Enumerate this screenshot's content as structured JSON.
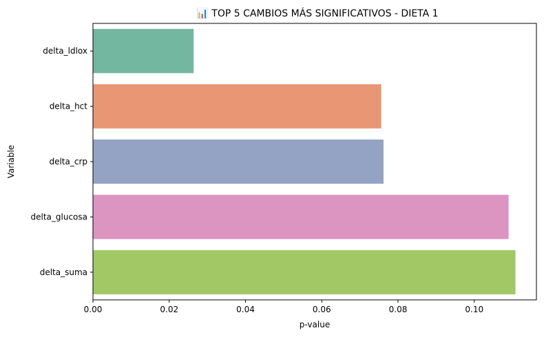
{
  "chart_data": {
    "type": "bar",
    "orientation": "horizontal",
    "title": "📊 TOP 5 CAMBIOS MÁS SIGNIFICATIVOS - DIETA 1",
    "xlabel": "p-value",
    "ylabel": "Variable",
    "categories": [
      "delta_ldlox",
      "delta_hct",
      "delta_crp",
      "delta_glucosa",
      "delta_suma"
    ],
    "values": [
      0.0264,
      0.0756,
      0.0762,
      0.109,
      0.1108
    ],
    "colors": [
      "#73b7a1",
      "#e99674",
      "#94a3c3",
      "#dc94c1",
      "#a2c866"
    ],
    "xlim": [
      0,
      0.1163
    ],
    "xticks": [
      "0.00",
      "0.02",
      "0.04",
      "0.06",
      "0.08",
      "0.10"
    ],
    "grid": false,
    "legend": "none"
  }
}
